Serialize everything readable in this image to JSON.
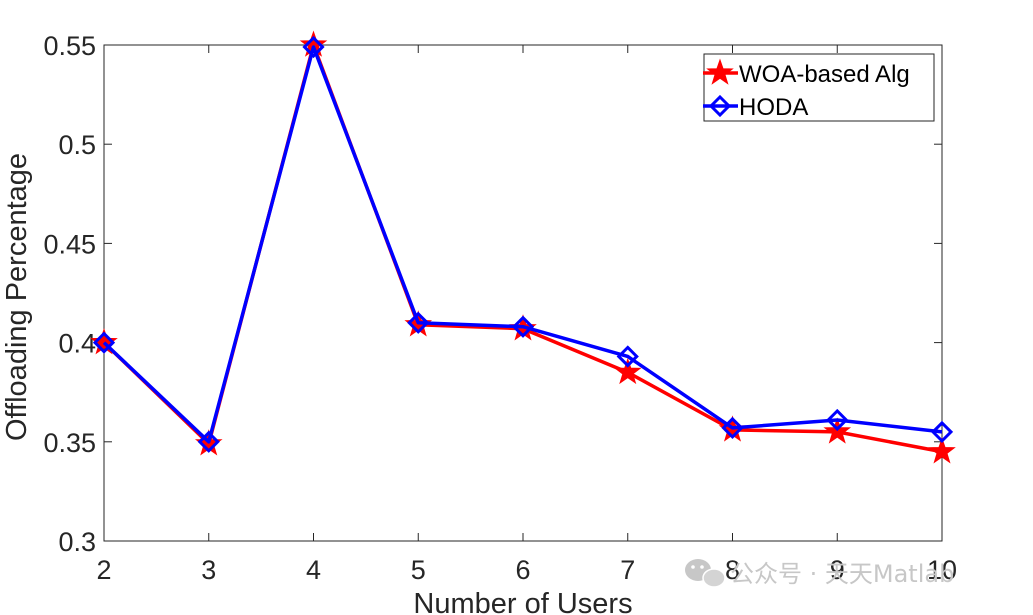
{
  "chart_data": {
    "type": "line",
    "title": "",
    "xlabel": "Number of Users",
    "ylabel": "Offloading Percentage",
    "x": [
      2,
      3,
      4,
      5,
      6,
      7,
      8,
      9,
      10
    ],
    "xlim": [
      2,
      10
    ],
    "ylim": [
      0.3,
      0.55
    ],
    "xticks": [
      "2",
      "3",
      "4",
      "5",
      "6",
      "7",
      "8",
      "9",
      "10"
    ],
    "yticks": [
      "0.3",
      "0.35",
      "0.4",
      "0.45",
      "0.5",
      "0.55"
    ],
    "yticks_values": [
      0.3,
      0.35,
      0.4,
      0.45,
      0.5,
      0.55
    ],
    "grid": false,
    "legend_position": "top-right",
    "series": [
      {
        "name": "WOA-based Alg",
        "color": "#ff0000",
        "marker": "star",
        "values": [
          0.4,
          0.349,
          0.55,
          0.409,
          0.407,
          0.385,
          0.356,
          0.355,
          0.345
        ]
      },
      {
        "name": "HODA",
        "color": "#0000ff",
        "marker": "diamond",
        "values": [
          0.4,
          0.35,
          0.549,
          0.41,
          0.408,
          0.393,
          0.357,
          0.361,
          0.355
        ]
      }
    ]
  },
  "watermark": {
    "text": "公众号 · 天天Matlab",
    "icon": "wechat-icon"
  }
}
